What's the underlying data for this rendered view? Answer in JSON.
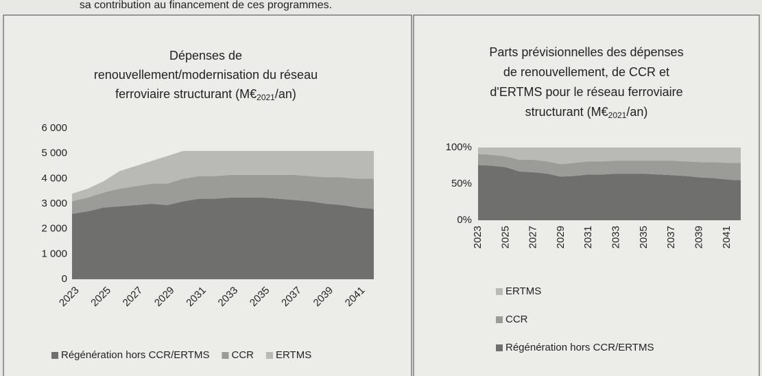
{
  "header_text": "sa contribution au financement de ces programmes.",
  "chart_data": [
    {
      "type": "stacked_area",
      "title": [
        "Dépenses de",
        "renouvellement/modernisation du réseau",
        "ferroviaire structurant (M€"
      ],
      "title_subscript": "2021",
      "title_suffix": "/an)",
      "categories": [
        "2023",
        null,
        "2025",
        null,
        "2027",
        null,
        "2029",
        null,
        "2031",
        null,
        "2033",
        null,
        "2035",
        null,
        "2037",
        null,
        "2039",
        null,
        "2041",
        null
      ],
      "series": [
        {
          "name": "Régénération hors CCR/ERTMS",
          "color": "#6f6f6d",
          "values": [
            2600,
            2700,
            2850,
            2900,
            2950,
            3000,
            2950,
            3100,
            3200,
            3200,
            3250,
            3250,
            3250,
            3200,
            3150,
            3100,
            3000,
            2950,
            2850,
            2800
          ]
        },
        {
          "name": "CCR",
          "color": "#9b9b98",
          "values": [
            500,
            550,
            600,
            700,
            750,
            800,
            850,
            900,
            900,
            900,
            900,
            900,
            900,
            950,
            1000,
            1000,
            1050,
            1100,
            1150,
            1200
          ]
        },
        {
          "name": "ERTMS",
          "color": "#b9b9b6",
          "values": [
            300,
            350,
            450,
            700,
            800,
            900,
            1100,
            1100,
            1000,
            1000,
            950,
            950,
            950,
            950,
            950,
            1000,
            1050,
            1050,
            1100,
            1100
          ]
        }
      ],
      "ylim": [
        0,
        6000
      ],
      "yticks": [
        0,
        {
          "value": 1000,
          "label": "1 000"
        },
        {
          "value": 2000,
          "label": "2 000"
        },
        {
          "value": 3000,
          "label": "3 000"
        },
        {
          "value": 4000,
          "label": "4 000"
        },
        {
          "value": 5000,
          "label": "5 000"
        },
        {
          "value": 6000,
          "label": "6 000"
        }
      ],
      "legend": "bottom",
      "x_label_rotation": -45
    },
    {
      "type": "stacked_area",
      "title": [
        "Parts prévisionnelles des dépenses",
        "de renouvellement, de CCR et",
        "d'ERTMS pour le réseau ferroviaire",
        "structurant (M€"
      ],
      "title_subscript": "2021",
      "title_suffix": "/an)",
      "categories": [
        "2023",
        null,
        "2025",
        null,
        "2027",
        null,
        "2029",
        null,
        "2031",
        null,
        "2033",
        null,
        "2035",
        null,
        "2037",
        null,
        "2039",
        null,
        "2041",
        null
      ],
      "series": [
        {
          "name": "Régénération hors CCR/ERTMS",
          "color": "#6f6f6d",
          "values": [
            76,
            75,
            73,
            67,
            66,
            64,
            60,
            61,
            63,
            63,
            64,
            64,
            64,
            63,
            62,
            61,
            59,
            58,
            56,
            55
          ]
        },
        {
          "name": "CCR",
          "color": "#9b9b98",
          "values": [
            15,
            15,
            15,
            16,
            17,
            17,
            17,
            18,
            18,
            18,
            18,
            18,
            18,
            19,
            20,
            20,
            21,
            22,
            23,
            24
          ]
        },
        {
          "name": "ERTMS",
          "color": "#b9b9b6",
          "values": [
            9,
            10,
            12,
            17,
            17,
            19,
            23,
            21,
            19,
            19,
            18,
            18,
            18,
            18,
            18,
            19,
            20,
            20,
            21,
            21
          ]
        }
      ],
      "ylim": [
        0,
        100
      ],
      "yticks": [
        {
          "value": 0,
          "label": "0%"
        },
        {
          "value": 50,
          "label": "50%"
        },
        {
          "value": 100,
          "label": "100%"
        }
      ],
      "legend": "bottom-stacked",
      "x_label_rotation": -90
    }
  ]
}
